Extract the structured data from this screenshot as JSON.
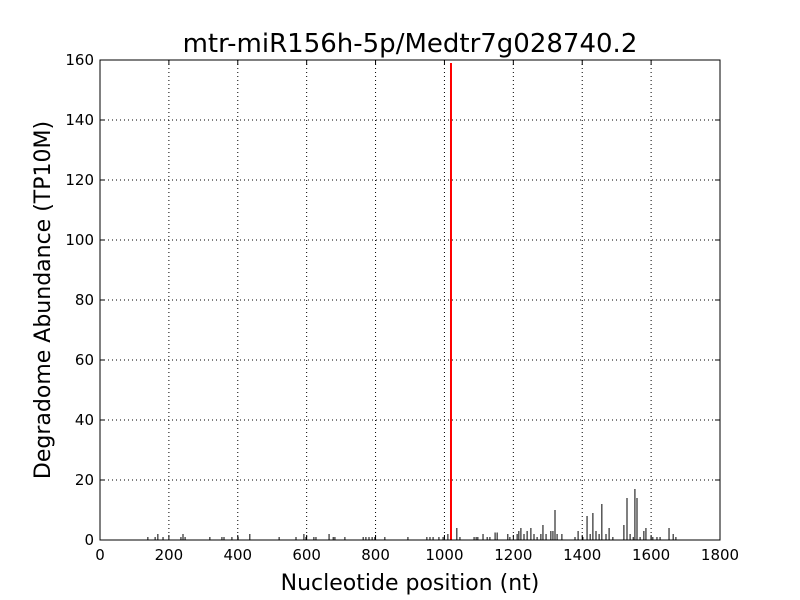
{
  "chart_data": {
    "type": "bar",
    "title": "mtr-miR156h-5p/Medtr7g028740.2",
    "xlabel": "Nucleotide position (nt)",
    "ylabel": "Degradome Abundance (TP10M)",
    "xlim": [
      0,
      1800
    ],
    "ylim": [
      0,
      160
    ],
    "xticks": [
      0,
      200,
      400,
      600,
      800,
      1000,
      1200,
      1400,
      1600,
      1800
    ],
    "yticks": [
      0,
      20,
      40,
      60,
      80,
      100,
      120,
      140,
      160
    ],
    "grid": true,
    "series": [
      {
        "color": "#000000",
        "x": [
          139,
          160,
          168,
          183,
          235,
          241,
          247,
          319,
          354,
          360,
          383,
          401,
          435,
          520,
          569,
          592,
          598,
          621,
          627,
          665,
          677,
          682,
          711,
          764,
          772,
          781,
          790,
          798,
          827,
          894,
          949,
          958,
          967,
          984,
          996,
          1010,
          1036,
          1045,
          1086,
          1092,
          1097,
          1112,
          1124,
          1132,
          1147,
          1153,
          1184,
          1190,
          1211,
          1216,
          1222,
          1231,
          1240,
          1251,
          1260,
          1269,
          1280,
          1286,
          1295,
          1309,
          1315,
          1321,
          1327,
          1341,
          1379,
          1388,
          1402,
          1414,
          1423,
          1431,
          1440,
          1449,
          1457,
          1469,
          1478,
          1489,
          1521,
          1530,
          1539,
          1548,
          1553,
          1559,
          1568,
          1579,
          1585,
          1600,
          1605,
          1617,
          1626,
          1652,
          1664,
          1672
        ],
        "values": [
          1,
          1,
          2,
          1,
          1,
          2,
          1,
          1,
          1,
          1,
          1,
          1,
          2,
          1,
          1,
          2,
          1,
          1,
          1,
          2,
          1,
          1,
          1,
          1,
          1,
          1,
          1,
          1,
          1,
          1,
          1,
          1,
          1,
          1,
          1,
          2,
          4,
          1,
          1,
          1,
          1,
          2,
          1,
          1,
          2.5,
          2.5,
          2,
          1,
          2,
          3,
          4,
          2,
          3,
          4,
          2,
          1,
          2,
          5,
          2,
          3,
          3,
          10,
          2,
          2,
          1,
          3,
          1,
          8,
          2,
          9,
          3,
          2,
          12,
          2,
          4,
          1,
          5,
          14,
          2,
          1,
          17,
          14,
          1,
          3,
          4,
          1,
          1,
          1,
          1,
          4,
          2,
          1
        ]
      },
      {
        "color": "#ff0000",
        "x": [
          1019
        ],
        "values": [
          159
        ]
      }
    ]
  }
}
